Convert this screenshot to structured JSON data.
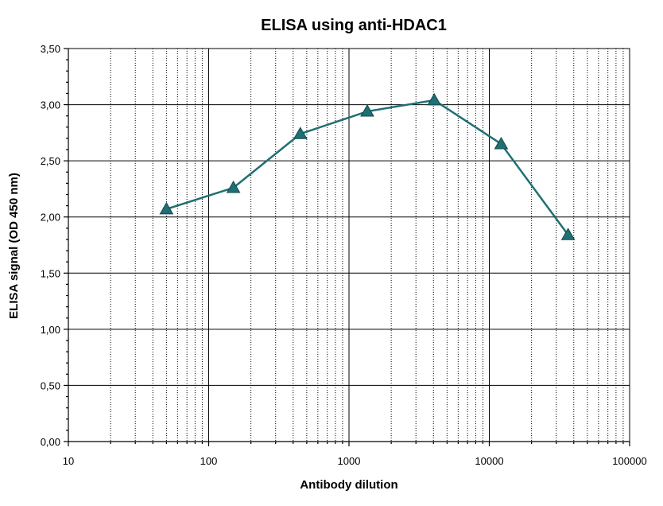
{
  "chart_data": {
    "type": "line",
    "title": "ELISA using anti-HDAC1",
    "xlabel": "Antibody dilution",
    "ylabel": "ELISA signal (OD 450 nm)",
    "x_scale": "log",
    "xlim": [
      10,
      100000
    ],
    "ylim": [
      0,
      3.5
    ],
    "x_ticks": [
      10,
      100,
      1000,
      10000,
      100000
    ],
    "x_tick_labels": [
      "10",
      "100",
      "1000",
      "10000",
      "100000"
    ],
    "y_ticks": [
      0,
      0.5,
      1.0,
      1.5,
      2.0,
      2.5,
      3.0,
      3.5
    ],
    "y_tick_labels": [
      "0,00",
      "0,50",
      "1,00",
      "1,50",
      "2,00",
      "2,50",
      "3,00",
      "3,50"
    ],
    "grid": true,
    "series": [
      {
        "marker": "triangle",
        "color": "#1f6f73",
        "x": [
          50,
          150,
          450,
          1350,
          4050,
          12150,
          36450
        ],
        "y": [
          2.07,
          2.26,
          2.74,
          2.94,
          3.04,
          2.65,
          1.84
        ]
      }
    ]
  }
}
